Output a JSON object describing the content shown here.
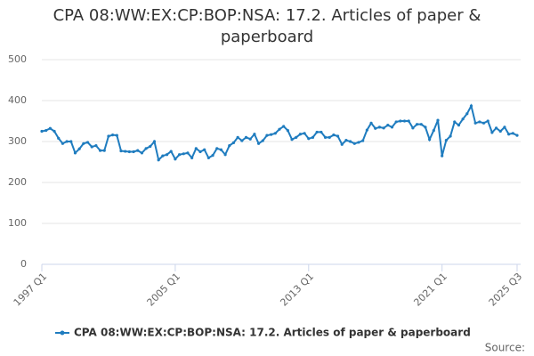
{
  "chart_data": {
    "type": "line",
    "title": "CPA 08:WW:EX:CP:BOP:NSA: 17.2. Articles of paper & paperboard",
    "source": "Source:",
    "categories": [
      "1997 Q1",
      null,
      null,
      null,
      null,
      null,
      null,
      null,
      null,
      null,
      null,
      null,
      null,
      null,
      null,
      null,
      null,
      null,
      null,
      null,
      null,
      null,
      null,
      null,
      null,
      null,
      null,
      null,
      null,
      null,
      null,
      null,
      "2005 Q1",
      null,
      null,
      null,
      null,
      null,
      null,
      null,
      null,
      null,
      null,
      null,
      null,
      null,
      null,
      null,
      null,
      null,
      null,
      null,
      null,
      null,
      null,
      null,
      null,
      null,
      null,
      null,
      null,
      null,
      null,
      null,
      "2013 Q1",
      null,
      null,
      null,
      null,
      null,
      null,
      null,
      null,
      null,
      null,
      null,
      null,
      null,
      null,
      null,
      null,
      null,
      null,
      null,
      null,
      null,
      null,
      null,
      null,
      null,
      null,
      null,
      null,
      null,
      null,
      null,
      "2021 Q1",
      null,
      null,
      null,
      null,
      null,
      null,
      null,
      null,
      null,
      null,
      null,
      null,
      null,
      null,
      null,
      null,
      null,
      "2025 Q3"
    ],
    "series": [
      {
        "name": "CPA 08:WW:EX:CP:BOP:NSA: 17.2. Articles of paper & paperboard",
        "color": "#1f7cbf",
        "values": [
          325,
          327,
          332,
          325,
          308,
          295,
          300,
          300,
          272,
          282,
          295,
          298,
          287,
          290,
          278,
          278,
          313,
          316,
          315,
          277,
          276,
          275,
          275,
          278,
          272,
          283,
          288,
          300,
          255,
          265,
          268,
          276,
          257,
          268,
          270,
          272,
          260,
          283,
          275,
          280,
          260,
          266,
          283,
          280,
          268,
          290,
          297,
          310,
          302,
          310,
          306,
          318,
          295,
          302,
          315,
          317,
          320,
          330,
          337,
          327,
          305,
          310,
          318,
          320,
          307,
          310,
          323,
          323,
          310,
          310,
          316,
          313,
          293,
          303,
          300,
          295,
          298,
          302,
          328,
          345,
          332,
          335,
          333,
          340,
          335,
          348,
          350,
          350,
          350,
          333,
          342,
          342,
          335,
          305,
          327,
          352,
          265,
          303,
          313,
          348,
          340,
          355,
          368,
          387,
          345,
          348,
          345,
          350,
          322,
          333,
          325,
          335,
          318,
          320,
          315
        ]
      }
    ],
    "ylim": [
      0,
      500
    ],
    "yticks": [
      0,
      100,
      200,
      300,
      400,
      500
    ],
    "grid": true,
    "legend": "bottom"
  }
}
